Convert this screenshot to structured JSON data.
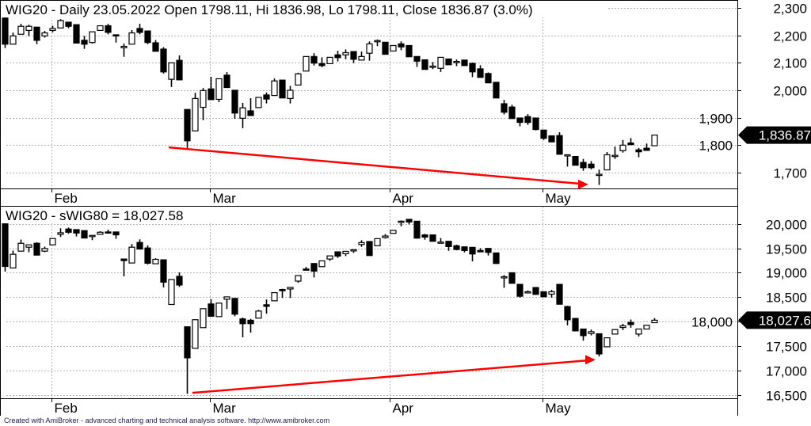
{
  "footer": "Created with AmiBroker - advanced charting and technical analysis software. http://www.amibroker.com",
  "colors": {
    "up_fill": "#ffffff",
    "down_fill": "#000000",
    "outline": "#000000",
    "trendline": "#ff0000",
    "grid": "#b4b4b4",
    "badge": "#000000"
  },
  "chart_data": [
    {
      "type": "candlestick",
      "title": "WIG20 - Daily 23.05.2022 Open 1798.11, Hi 1836.98, Lo 1798.11, Close 1836.87 (3.0%)",
      "last_value_label": "1,836.87",
      "last_value": 1836.87,
      "ylim": [
        1640,
        2320
      ],
      "yticks": [
        2300,
        2200,
        2100,
        2000,
        1900,
        1800,
        1700
      ],
      "ytick_labels": [
        "2,300",
        "2,200",
        "2,100",
        "2,000",
        "1,900",
        "1,800",
        "1,700"
      ],
      "xtick_labels": [
        {
          "label": "Feb",
          "bar": 6
        },
        {
          "label": "Mar",
          "bar": 26
        },
        {
          "label": "Apr",
          "bar": 48.7
        },
        {
          "label": "May",
          "bar": 68
        }
      ],
      "grid": true,
      "ohlc_fields": [
        "open",
        "high",
        "low",
        "close"
      ],
      "ohlc": [
        [
          2263,
          2271,
          2154,
          2168
        ],
        [
          2168,
          2210,
          2168,
          2198
        ],
        [
          2204,
          2242,
          2204,
          2233
        ],
        [
          2218,
          2239,
          2197,
          2233
        ],
        [
          2230,
          2230,
          2168,
          2182
        ],
        [
          2198,
          2216,
          2192,
          2209
        ],
        [
          2218,
          2235,
          2211,
          2225
        ],
        [
          2227,
          2259,
          2225,
          2254
        ],
        [
          2248,
          2248,
          2226,
          2233
        ],
        [
          2239,
          2239,
          2172,
          2172
        ],
        [
          2182,
          2198,
          2151,
          2168
        ],
        [
          2174,
          2213,
          2170,
          2213
        ],
        [
          2218,
          2235,
          2218,
          2235
        ],
        [
          2235,
          2242,
          2204,
          2211
        ],
        [
          2202,
          2202,
          2174,
          2201
        ],
        [
          2155,
          2170,
          2122,
          2160
        ],
        [
          2168,
          2219,
          2168,
          2209
        ],
        [
          2225,
          2242,
          2204,
          2211
        ],
        [
          2216,
          2216,
          2168,
          2174
        ],
        [
          2173,
          2183,
          2142,
          2142
        ],
        [
          2150,
          2157,
          2061,
          2067
        ],
        [
          2040,
          2100,
          2012,
          2100
        ],
        [
          2109,
          2127,
          2038,
          2038
        ],
        [
          1930,
          1930,
          1790,
          1816
        ],
        [
          1852,
          1991,
          1852,
          1970
        ],
        [
          1938,
          2008,
          1891,
          1999
        ],
        [
          2005,
          2049,
          1966,
          1966
        ],
        [
          1967,
          2042,
          1957,
          2042
        ],
        [
          2055,
          2066,
          2010,
          2010
        ],
        [
          2000,
          2000,
          1896,
          1917
        ],
        [
          1898,
          1954,
          1862,
          1936
        ],
        [
          1925,
          1971,
          1908,
          1908
        ],
        [
          1937,
          1974,
          1937,
          1974
        ],
        [
          1983,
          1992,
          1952,
          1968
        ],
        [
          1981,
          2043,
          1981,
          2034
        ],
        [
          2037,
          2037,
          1972,
          1972
        ],
        [
          1970,
          2016,
          1952,
          2000
        ],
        [
          2019,
          2064,
          2019,
          2060
        ],
        [
          2070,
          2123,
          2070,
          2123
        ],
        [
          2123,
          2135,
          2090,
          2099
        ],
        [
          2097,
          2120,
          2084,
          2090
        ],
        [
          2097,
          2120,
          2097,
          2120
        ],
        [
          2129,
          2144,
          2105,
          2119
        ],
        [
          2129,
          2149,
          2113,
          2137
        ],
        [
          2141,
          2141,
          2099,
          2113
        ],
        [
          2110,
          2141,
          2110,
          2123
        ],
        [
          2135,
          2178,
          2108,
          2169
        ],
        [
          2181,
          2185,
          2161,
          2181
        ],
        [
          2175,
          2175,
          2131,
          2131
        ],
        [
          2143,
          2163,
          2143,
          2163
        ],
        [
          2169,
          2178,
          2146,
          2158
        ],
        [
          2163,
          2163,
          2122,
          2122
        ],
        [
          2123,
          2123,
          2085,
          2106
        ],
        [
          2111,
          2111,
          2076,
          2076
        ],
        [
          2088,
          2103,
          2077,
          2088
        ],
        [
          2080,
          2120,
          2067,
          2120
        ],
        [
          2114,
          2114,
          2093,
          2093
        ],
        [
          2105,
          2112,
          2088,
          2105
        ],
        [
          2110,
          2110,
          2090,
          2090
        ],
        [
          2098,
          2101,
          2048,
          2067
        ],
        [
          2078,
          2091,
          2047,
          2047
        ],
        [
          2061,
          2065,
          2027,
          2027
        ],
        [
          2029,
          2029,
          1972,
          1972
        ],
        [
          1951,
          1965,
          1912,
          1920
        ],
        [
          1939,
          1947,
          1897,
          1897
        ],
        [
          1899,
          1899,
          1869,
          1883
        ],
        [
          1904,
          1913,
          1874,
          1883
        ],
        [
          1899,
          1899,
          1854,
          1857
        ],
        [
          1855,
          1855,
          1819,
          1825
        ],
        [
          1834,
          1834,
          1812,
          1812
        ],
        [
          1835,
          1847,
          1767,
          1767
        ],
        [
          1765,
          1765,
          1722,
          1765
        ],
        [
          1759,
          1759,
          1727,
          1727
        ],
        [
          1737,
          1750,
          1707,
          1718
        ],
        [
          1731,
          1742,
          1712,
          1718
        ],
        [
          1692,
          1711,
          1655,
          1694
        ],
        [
          1710,
          1775,
          1710,
          1765
        ],
        [
          1762,
          1795,
          1750,
          1763
        ],
        [
          1780,
          1819,
          1773,
          1800
        ],
        [
          1808,
          1826,
          1802,
          1802
        ],
        [
          1783,
          1790,
          1756,
          1776
        ],
        [
          1789,
          1806,
          1781,
          1781
        ],
        [
          1798.11,
          1836.98,
          1798.11,
          1836.87
        ]
      ],
      "trendline": {
        "from": {
          "bar": 20.7,
          "value": 1792
        },
        "to": {
          "bar": 73.7,
          "value": 1657
        },
        "arrow": true
      }
    },
    {
      "type": "candlestick",
      "title": "WIG20 - sWIG80 = 18,027.58",
      "last_value_label": "18,027.6",
      "last_value": 18027.58,
      "ylim": [
        16420,
        20250
      ],
      "yticks": [
        20000,
        19500,
        19000,
        18500,
        18000,
        17500,
        17000,
        16500
      ],
      "ytick_labels": [
        "20,000",
        "19,500",
        "19,000",
        "18,500",
        "18,000",
        "17,500",
        "17,000",
        "16,500"
      ],
      "xtick_labels": [
        {
          "label": "Feb",
          "bar": 6
        },
        {
          "label": "Mar",
          "bar": 26
        },
        {
          "label": "Apr",
          "bar": 48.7
        },
        {
          "label": "May",
          "bar": 68
        }
      ],
      "grid": true,
      "ohlc_fields": [
        "open",
        "high",
        "low",
        "close"
      ],
      "ohlc": [
        [
          20000,
          20043,
          19022,
          19129
        ],
        [
          19097,
          19452,
          19097,
          19377
        ],
        [
          19441,
          19678,
          19441,
          19602
        ],
        [
          19522,
          19570,
          19420,
          19570
        ],
        [
          19602,
          19624,
          19360,
          19360
        ],
        [
          19441,
          19533,
          19420,
          19495
        ],
        [
          19570,
          19699,
          19570,
          19699
        ],
        [
          19785,
          19909,
          19732,
          19818
        ],
        [
          19893,
          19925,
          19796,
          19828
        ],
        [
          19882,
          19882,
          19742,
          19812
        ],
        [
          19861,
          19861,
          19710,
          19710
        ],
        [
          19764,
          19764,
          19667,
          19764
        ],
        [
          19785,
          19850,
          19785,
          19828
        ],
        [
          19834,
          19882,
          19818,
          19818
        ],
        [
          19834,
          19834,
          19694,
          19775
        ],
        [
          19280,
          19280,
          18925,
          19248
        ],
        [
          19199,
          19586,
          19199,
          19522
        ],
        [
          19619,
          19683,
          19484,
          19484
        ],
        [
          19506,
          19559,
          19167,
          19194
        ],
        [
          19183,
          19296,
          19183,
          19274
        ],
        [
          19264,
          19264,
          18699,
          18807
        ],
        [
          18350,
          18860,
          18350,
          18860
        ],
        [
          18925,
          19006,
          18710,
          18748
        ],
        [
          17893,
          17893,
          16521,
          17258
        ],
        [
          17452,
          18038,
          17452,
          18038
        ],
        [
          17876,
          18264,
          17876,
          18264
        ],
        [
          18360,
          18457,
          18108,
          18108
        ],
        [
          18102,
          18377,
          18102,
          18377
        ],
        [
          18457,
          18505,
          18258,
          18505
        ],
        [
          18473,
          18484,
          18108,
          18151
        ],
        [
          18054,
          18081,
          17677,
          17957
        ],
        [
          18027,
          18054,
          17774,
          17957
        ],
        [
          18070,
          18237,
          18070,
          18215
        ],
        [
          18344,
          18452,
          18161,
          18312
        ],
        [
          18425,
          18592,
          18425,
          18592
        ],
        [
          18656,
          18672,
          18484,
          18635
        ],
        [
          18667,
          18699,
          18484,
          18699
        ],
        [
          18828,
          18941,
          18796,
          18941
        ],
        [
          19075,
          19118,
          19054,
          19054
        ],
        [
          19188,
          19188,
          18903,
          19032
        ],
        [
          19124,
          19242,
          19124,
          19242
        ],
        [
          19280,
          19344,
          19242,
          19344
        ],
        [
          19427,
          19427,
          19302,
          19340
        ],
        [
          19389,
          19437,
          19340,
          19437
        ],
        [
          19470,
          19470,
          19405,
          19470
        ],
        [
          19578,
          19665,
          19530,
          19616
        ],
        [
          19638,
          19638,
          19351,
          19351
        ],
        [
          19551,
          19697,
          19551,
          19697
        ],
        [
          19719,
          19789,
          19697,
          19751
        ],
        [
          19805,
          19865,
          19805,
          19865
        ],
        [
          20054,
          20070,
          19951,
          20054
        ],
        [
          20092,
          20092,
          19989,
          20038
        ],
        [
          20054,
          20054,
          19697,
          19708
        ],
        [
          19773,
          19794,
          19675,
          19729
        ],
        [
          19773,
          19773,
          19643,
          19643
        ],
        [
          19627,
          19708,
          19600,
          19627
        ],
        [
          19643,
          19643,
          19448,
          19535
        ],
        [
          19551,
          19573,
          19459,
          19475
        ],
        [
          19529,
          19529,
          19416,
          19454
        ],
        [
          19519,
          19519,
          19232,
          19383
        ],
        [
          19454,
          19502,
          19427,
          19427
        ],
        [
          19497,
          19497,
          19351,
          19416
        ],
        [
          19405,
          19405,
          19178,
          19189
        ],
        [
          18918,
          18950,
          18691,
          18918
        ],
        [
          18999,
          18999,
          18783,
          18783
        ],
        [
          18761,
          18772,
          18491,
          18518
        ],
        [
          18610,
          18637,
          18583,
          18610
        ],
        [
          18696,
          18707,
          18556,
          18556
        ],
        [
          18610,
          18610,
          18507,
          18507
        ],
        [
          18561,
          18648,
          18491,
          18610
        ],
        [
          18761,
          18761,
          18355,
          18355
        ],
        [
          18307,
          18323,
          17923,
          18036
        ],
        [
          18063,
          18074,
          17798,
          17809
        ],
        [
          17847,
          17847,
          17609,
          17712
        ],
        [
          17755,
          17836,
          17717,
          17793
        ],
        [
          17750,
          17750,
          17284,
          17338
        ],
        [
          17484,
          17668,
          17484,
          17668
        ],
        [
          17744,
          17836,
          17744,
          17836
        ],
        [
          17879,
          17955,
          17825,
          17912
        ],
        [
          17982,
          18042,
          17874,
          17939
        ],
        [
          17744,
          17847,
          17695,
          17847
        ],
        [
          17847,
          17923,
          17847,
          17923
        ],
        [
          17977,
          18069,
          17977,
          18027.58
        ]
      ],
      "trendline": {
        "from": {
          "bar": 23.7,
          "value": 16541
        },
        "to": {
          "bar": 74.6,
          "value": 17218
        },
        "arrow": true
      }
    }
  ]
}
